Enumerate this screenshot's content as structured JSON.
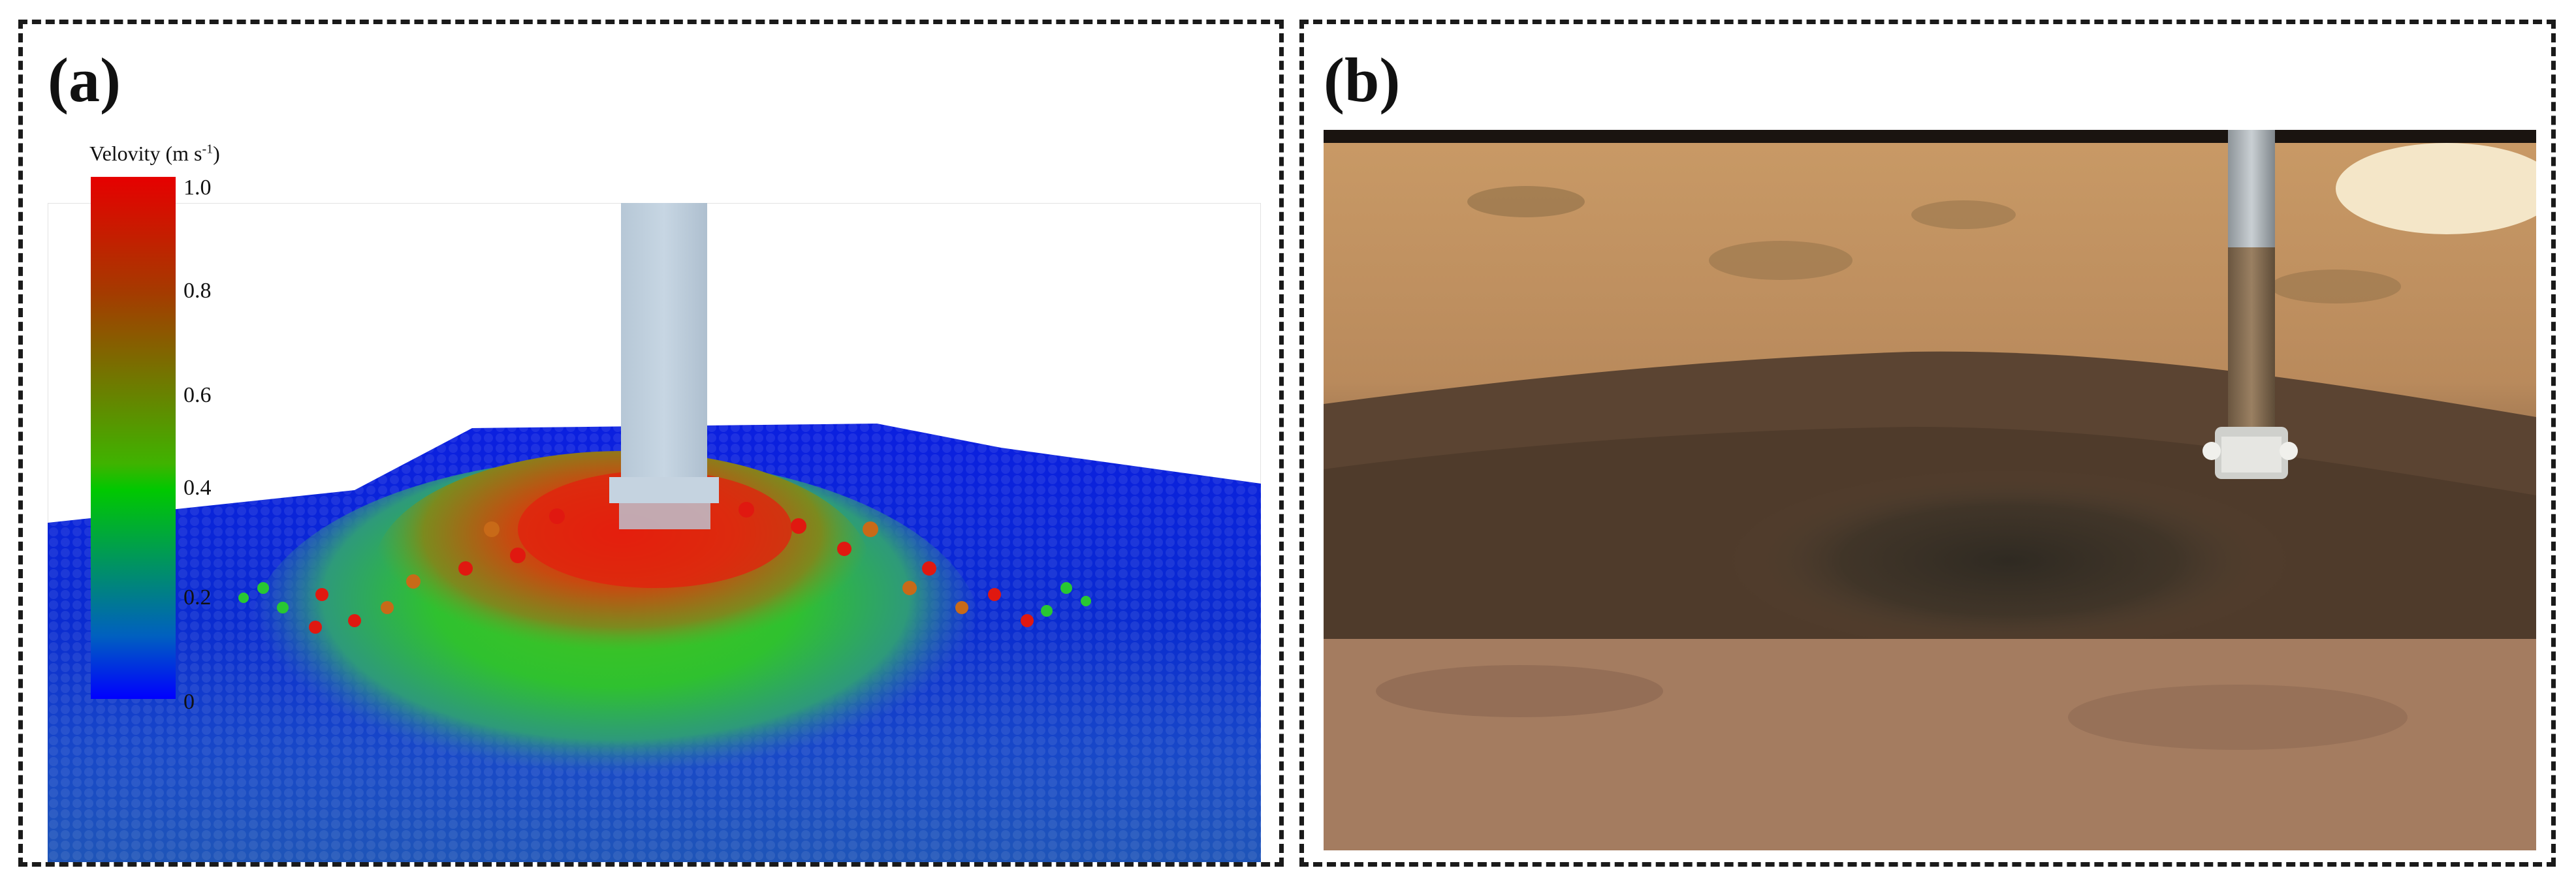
{
  "panel_a": {
    "label": "(a)",
    "colorbar": {
      "title_main": "Velovity (m s",
      "title_sup": "-1",
      "title_end": ")",
      "ticks": [
        "1.0",
        "0.8",
        "0.6",
        "0.4",
        "0.2",
        "0"
      ]
    }
  },
  "panel_b": {
    "label": "(b)"
  }
}
